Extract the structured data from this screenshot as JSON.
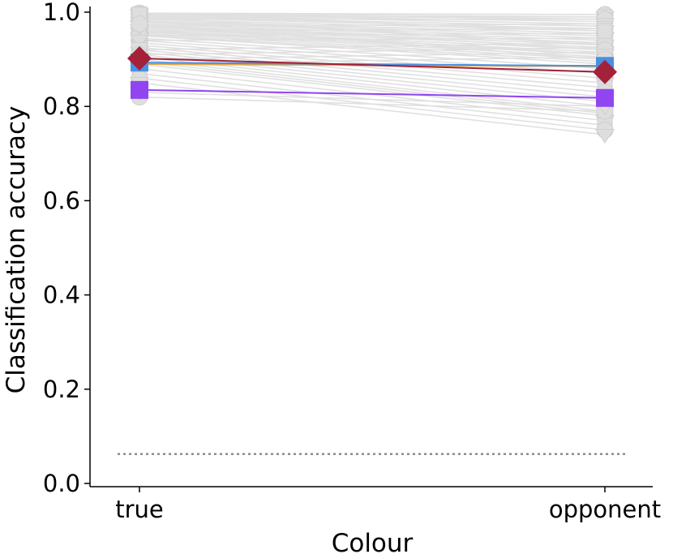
{
  "chart_data": {
    "type": "line",
    "xlabel": "Colour",
    "ylabel": "Classification accuracy",
    "categories": [
      "true",
      "opponent"
    ],
    "ylim": [
      0.0,
      1.0
    ],
    "yticks": [
      "0.0",
      "0.2",
      "0.4",
      "0.6",
      "0.8",
      "1.0"
    ],
    "chance_level": 0.0625,
    "grid": false,
    "background_series": [
      [
        0.998,
        0.995
      ],
      [
        0.997,
        0.99
      ],
      [
        0.996,
        0.985
      ],
      [
        0.995,
        0.98
      ],
      [
        0.993,
        0.975
      ],
      [
        0.99,
        0.97
      ],
      [
        0.988,
        0.965
      ],
      [
        0.985,
        0.96
      ],
      [
        0.982,
        0.955
      ],
      [
        0.98,
        0.95
      ],
      [
        0.978,
        0.945
      ],
      [
        0.975,
        0.94
      ],
      [
        0.972,
        0.935
      ],
      [
        0.97,
        0.93
      ],
      [
        0.968,
        0.925
      ],
      [
        0.965,
        0.92
      ],
      [
        0.962,
        0.915
      ],
      [
        0.96,
        0.91
      ],
      [
        0.958,
        0.905
      ],
      [
        0.955,
        0.9
      ],
      [
        0.952,
        0.895
      ],
      [
        0.95,
        0.89
      ],
      [
        0.945,
        0.88
      ],
      [
        0.94,
        0.87
      ],
      [
        0.935,
        0.86
      ],
      [
        0.93,
        0.85
      ],
      [
        0.925,
        0.84
      ],
      [
        0.92,
        0.83
      ],
      [
        0.915,
        0.82
      ],
      [
        0.91,
        0.81
      ],
      [
        0.905,
        0.8
      ],
      [
        0.9,
        0.79
      ],
      [
        0.895,
        0.785
      ],
      [
        0.89,
        0.78
      ],
      [
        0.88,
        0.77
      ],
      [
        0.87,
        0.76
      ],
      [
        0.86,
        0.75
      ],
      [
        0.85,
        0.74
      ],
      [
        0.99,
        0.99
      ],
      [
        0.985,
        0.985
      ],
      [
        0.97,
        0.975
      ],
      [
        0.96,
        0.965
      ],
      [
        0.95,
        0.955
      ],
      [
        0.94,
        0.945
      ],
      [
        0.92,
        0.935
      ],
      [
        0.91,
        0.925
      ],
      [
        0.9,
        0.915
      ],
      [
        0.89,
        0.905
      ],
      [
        0.82,
        0.79
      ],
      [
        0.83,
        0.8
      ],
      [
        0.99,
        0.93
      ],
      [
        0.98,
        0.92
      ],
      [
        0.97,
        0.91
      ],
      [
        0.995,
        0.96
      ],
      [
        0.975,
        0.9
      ]
    ],
    "series": [
      {
        "values": [
          0.89,
          0.885
        ],
        "color": "#e8a93a",
        "marker": "none"
      },
      {
        "values": [
          0.893,
          0.886
        ],
        "color": "#4a90e2",
        "marker": "square"
      },
      {
        "values": [
          0.835,
          0.818
        ],
        "color": "#9145f0",
        "marker": "square"
      },
      {
        "values": [
          0.902,
          0.873
        ],
        "color": "#a3223a",
        "marker": "diamond"
      }
    ],
    "colors": {
      "background_line": "#e0e0e0",
      "background_marker": "#dedede",
      "chance_line": "#8c8c8c",
      "axis": "#000000"
    }
  }
}
